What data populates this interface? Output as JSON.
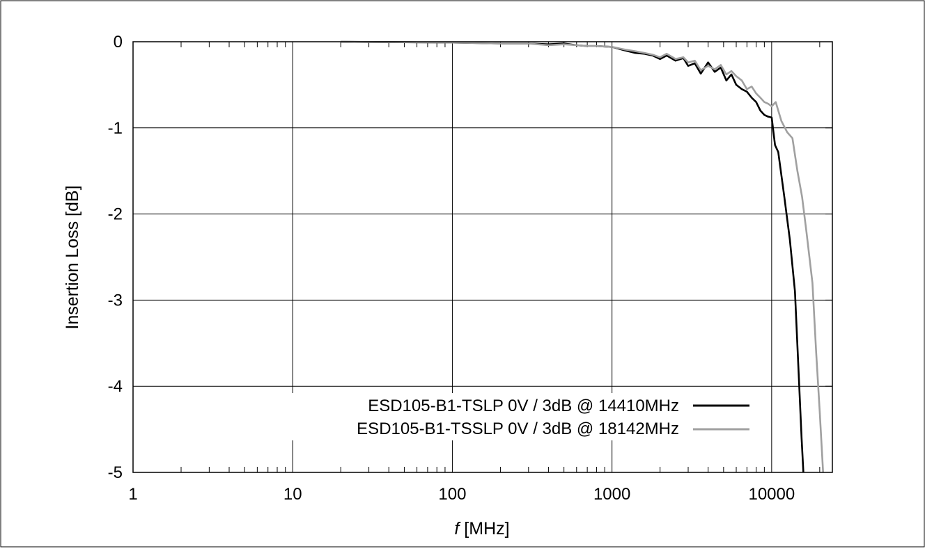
{
  "chart_data": {
    "type": "line",
    "title": "",
    "xlabel_italic": "f",
    "xlabel_rest": " [MHz]",
    "ylabel": "Insertion Loss [dB]",
    "x_scale": "log",
    "xlim": [
      1,
      24000
    ],
    "ylim": [
      -5,
      0
    ],
    "x_ticks": [
      {
        "value": 1,
        "label": "1"
      },
      {
        "value": 10,
        "label": "10"
      },
      {
        "value": 100,
        "label": "100"
      },
      {
        "value": 1000,
        "label": "1000"
      },
      {
        "value": 10000,
        "label": "10000"
      }
    ],
    "y_ticks": [
      {
        "value": 0,
        "label": "0"
      },
      {
        "value": -1,
        "label": "-1"
      },
      {
        "value": -2,
        "label": "-2"
      },
      {
        "value": -3,
        "label": "-3"
      },
      {
        "value": -4,
        "label": "-4"
      },
      {
        "value": -5,
        "label": "-5"
      }
    ],
    "grid": true,
    "legend_position": "bottom-right",
    "series": [
      {
        "name": "ESD105-B1-TSLP 0V / 3dB @ 14410MHz",
        "color": "#000000",
        "points": [
          [
            20,
            0
          ],
          [
            100,
            -0.01
          ],
          [
            200,
            -0.02
          ],
          [
            300,
            -0.02
          ],
          [
            400,
            -0.03
          ],
          [
            500,
            -0.02
          ],
          [
            600,
            -0.04
          ],
          [
            700,
            -0.05
          ],
          [
            800,
            -0.05
          ],
          [
            1000,
            -0.06
          ],
          [
            1200,
            -0.1
          ],
          [
            1400,
            -0.13
          ],
          [
            1600,
            -0.14
          ],
          [
            1800,
            -0.16
          ],
          [
            2000,
            -0.2
          ],
          [
            2200,
            -0.16
          ],
          [
            2500,
            -0.22
          ],
          [
            2800,
            -0.19
          ],
          [
            3000,
            -0.28
          ],
          [
            3300,
            -0.25
          ],
          [
            3600,
            -0.37
          ],
          [
            4000,
            -0.24
          ],
          [
            4400,
            -0.35
          ],
          [
            4800,
            -0.3
          ],
          [
            5200,
            -0.45
          ],
          [
            5600,
            -0.38
          ],
          [
            6000,
            -0.5
          ],
          [
            6500,
            -0.55
          ],
          [
            7000,
            -0.58
          ],
          [
            7500,
            -0.65
          ],
          [
            8000,
            -0.7
          ],
          [
            8500,
            -0.8
          ],
          [
            9000,
            -0.85
          ],
          [
            9500,
            -0.87
          ],
          [
            10000,
            -0.88
          ],
          [
            10500,
            -1.2
          ],
          [
            11000,
            -1.28
          ],
          [
            12000,
            -1.8
          ],
          [
            13000,
            -2.3
          ],
          [
            14000,
            -2.9
          ],
          [
            14800,
            -3.9
          ],
          [
            15400,
            -4.6
          ],
          [
            15800,
            -5.0
          ]
        ]
      },
      {
        "name": "ESD105-B1-TSSLP 0V / 3dB @ 18142MHz",
        "color": "#a0a0a0",
        "points": [
          [
            20,
            0
          ],
          [
            100,
            -0.01
          ],
          [
            200,
            -0.02
          ],
          [
            300,
            -0.02
          ],
          [
            400,
            -0.04
          ],
          [
            500,
            -0.03
          ],
          [
            600,
            -0.04
          ],
          [
            700,
            -0.05
          ],
          [
            800,
            -0.05
          ],
          [
            1000,
            -0.06
          ],
          [
            1200,
            -0.09
          ],
          [
            1400,
            -0.11
          ],
          [
            1600,
            -0.13
          ],
          [
            1800,
            -0.15
          ],
          [
            2000,
            -0.18
          ],
          [
            2200,
            -0.14
          ],
          [
            2500,
            -0.2
          ],
          [
            2800,
            -0.18
          ],
          [
            3000,
            -0.24
          ],
          [
            3300,
            -0.22
          ],
          [
            3600,
            -0.33
          ],
          [
            4000,
            -0.28
          ],
          [
            4400,
            -0.32
          ],
          [
            4800,
            -0.27
          ],
          [
            5200,
            -0.38
          ],
          [
            5600,
            -0.34
          ],
          [
            6000,
            -0.4
          ],
          [
            6500,
            -0.45
          ],
          [
            7000,
            -0.55
          ],
          [
            7500,
            -0.52
          ],
          [
            8000,
            -0.6
          ],
          [
            8500,
            -0.65
          ],
          [
            9000,
            -0.7
          ],
          [
            9500,
            -0.72
          ],
          [
            10000,
            -0.75
          ],
          [
            10600,
            -0.7
          ],
          [
            11500,
            -0.92
          ],
          [
            12500,
            -1.05
          ],
          [
            13500,
            -1.12
          ],
          [
            14500,
            -1.5
          ],
          [
            15500,
            -1.8
          ],
          [
            16500,
            -2.2
          ],
          [
            18000,
            -2.8
          ],
          [
            19000,
            -3.6
          ],
          [
            20000,
            -4.3
          ],
          [
            21000,
            -5.0
          ]
        ]
      }
    ]
  }
}
